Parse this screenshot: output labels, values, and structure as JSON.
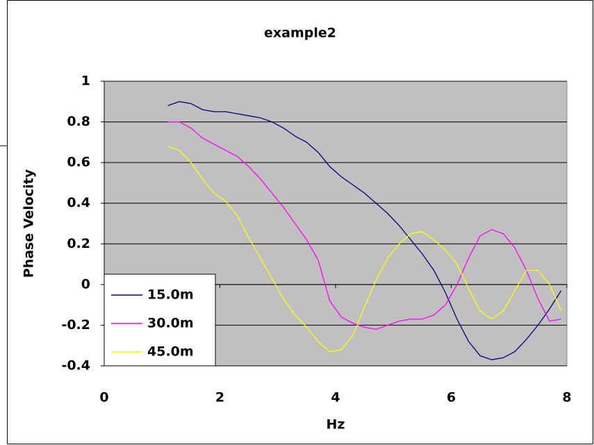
{
  "chart_data": {
    "type": "line",
    "title": "example2",
    "xlabel": "Hz",
    "ylabel": "Phase Velocity",
    "x": [
      1.1,
      1.3,
      1.5,
      1.7,
      1.9,
      2.1,
      2.3,
      2.5,
      2.7,
      2.9,
      3.1,
      3.3,
      3.5,
      3.7,
      3.9,
      4.1,
      4.3,
      4.5,
      4.7,
      4.9,
      5.1,
      5.3,
      5.5,
      5.7,
      5.9,
      6.1,
      6.3,
      6.5,
      6.7,
      6.9,
      7.1,
      7.3,
      7.5,
      7.7,
      7.9
    ],
    "series": [
      {
        "name": "15.0m",
        "color": "#000080",
        "values": [
          0.88,
          0.9,
          0.89,
          0.86,
          0.85,
          0.85,
          0.84,
          0.83,
          0.82,
          0.8,
          0.77,
          0.73,
          0.7,
          0.65,
          0.58,
          0.53,
          0.49,
          0.45,
          0.4,
          0.35,
          0.29,
          0.22,
          0.15,
          0.07,
          -0.04,
          -0.17,
          -0.28,
          -0.35,
          -0.37,
          -0.36,
          -0.33,
          -0.27,
          -0.2,
          -0.12,
          -0.03
        ]
      },
      {
        "name": "30.0m",
        "color": "#ff00ff",
        "values": [
          0.8,
          0.8,
          0.77,
          0.72,
          0.69,
          0.66,
          0.63,
          0.58,
          0.52,
          0.45,
          0.38,
          0.3,
          0.22,
          0.12,
          -0.08,
          -0.16,
          -0.19,
          -0.21,
          -0.22,
          -0.2,
          -0.18,
          -0.17,
          -0.17,
          -0.15,
          -0.1,
          0.0,
          0.13,
          0.24,
          0.27,
          0.25,
          0.18,
          0.07,
          -0.07,
          -0.18,
          -0.17
        ]
      },
      {
        "name": "45.0m",
        "color": "#ffff00",
        "values": [
          0.68,
          0.66,
          0.6,
          0.52,
          0.45,
          0.41,
          0.34,
          0.23,
          0.13,
          0.03,
          -0.07,
          -0.15,
          -0.21,
          -0.28,
          -0.33,
          -0.32,
          -0.25,
          -0.11,
          0.02,
          0.13,
          0.2,
          0.25,
          0.26,
          0.22,
          0.17,
          0.1,
          -0.02,
          -0.13,
          -0.17,
          -0.13,
          -0.03,
          0.07,
          0.07,
          0.0,
          -0.13
        ]
      }
    ],
    "xlim": [
      0,
      8
    ],
    "xticks": [
      0,
      2,
      4,
      6,
      8
    ],
    "ylim": [
      -0.4,
      1
    ],
    "yticks": [
      -0.4,
      -0.2,
      0,
      0.2,
      0.4,
      0.6,
      0.8,
      1
    ],
    "grid": true,
    "plot_background": "#c0c0c0",
    "legend": "lower-left"
  }
}
